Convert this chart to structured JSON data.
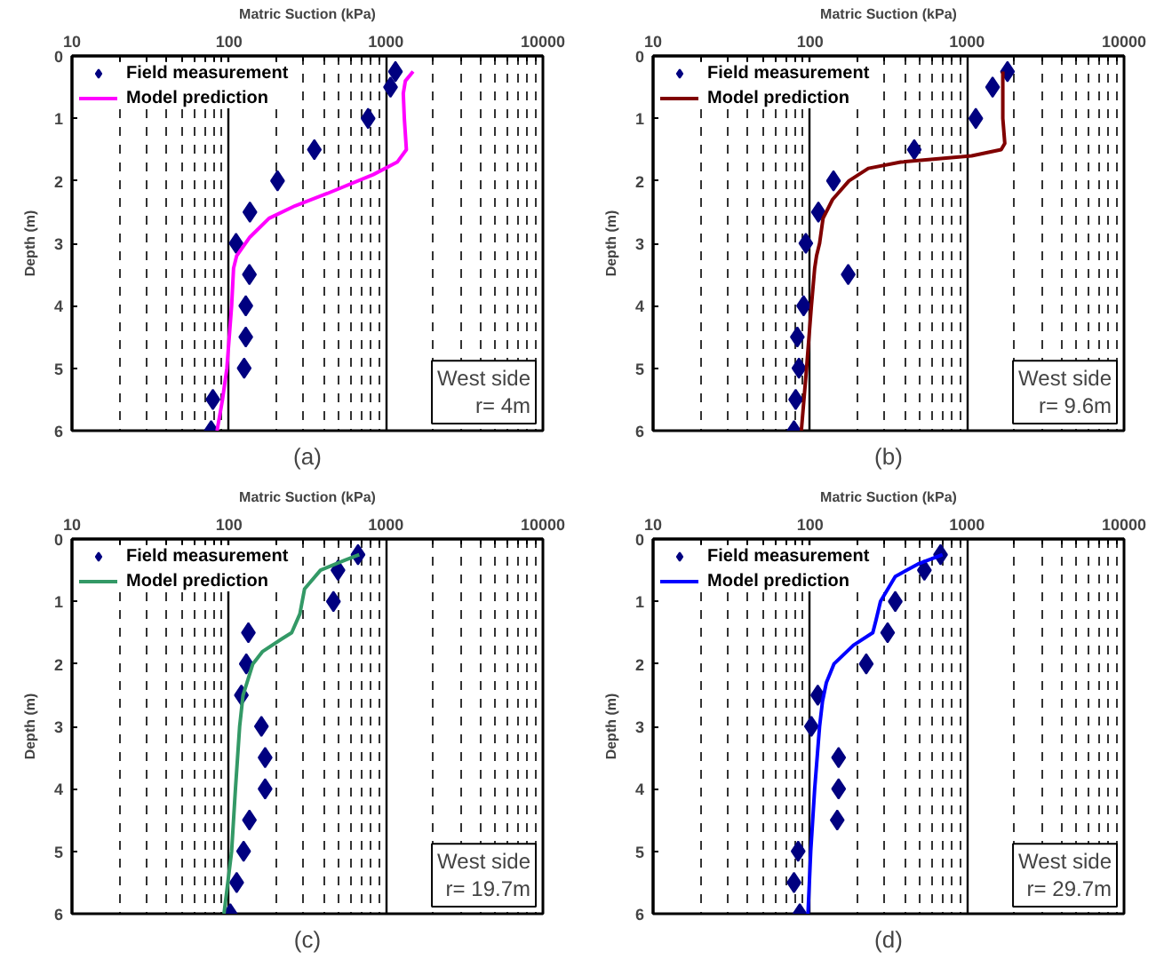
{
  "chart_data": [
    {
      "type": "scatter",
      "xlabel": "Matric Suction (kPa)",
      "ylabel": "Depth (m)",
      "log": "x",
      "xlim": [
        10,
        10000
      ],
      "ylim": [
        6,
        0
      ],
      "xticks": [
        10,
        {
          "value": 20,
          "label": null
        },
        {
          "value": 30,
          "label": null
        },
        {
          "value": 40,
          "label": null
        },
        {
          "value": 50,
          "label": null
        },
        {
          "value": 60,
          "label": null
        },
        {
          "value": 70,
          "label": null
        },
        {
          "value": 80,
          "label": null
        },
        {
          "value": 90,
          "label": null
        },
        100,
        {
          "value": 200,
          "label": null
        },
        {
          "value": 300,
          "label": null
        },
        {
          "value": 400,
          "label": null
        },
        {
          "value": 500,
          "label": null
        },
        {
          "value": 600,
          "label": null
        },
        {
          "value": 700,
          "label": null
        },
        {
          "value": 800,
          "label": null
        },
        {
          "value": 900,
          "label": null
        },
        1000,
        {
          "value": 2000,
          "label": null
        },
        {
          "value": 3000,
          "label": null
        },
        {
          "value": 4000,
          "label": null
        },
        {
          "value": 5000,
          "label": null
        },
        {
          "value": 6000,
          "label": null
        },
        {
          "value": 7000,
          "label": null
        },
        {
          "value": 8000,
          "label": null
        },
        {
          "value": 9000,
          "label": null
        },
        10000
      ],
      "yticks": [
        0,
        1,
        2,
        3,
        4,
        5,
        6
      ],
      "grid": "x",
      "legend": "top left",
      "annotations": [
        "West side",
        "r= 4m",
        "(a)"
      ],
      "series": [
        {
          "name": "Field measurement",
          "marker": "diamond",
          "color": "#000080",
          "x": [
            1150,
            1070,
            770,
            350,
            204,
            136,
            111,
            135,
            128,
            128,
            125,
            79,
            77
          ],
          "values": [
            0.25,
            0.5,
            1,
            1.5,
            2,
            2.5,
            3,
            3.5,
            4,
            4.5,
            5,
            5.5,
            6
          ]
        },
        {
          "name": "Model prediction",
          "type": "line",
          "color": "#ff00ff",
          "x": [
            1490,
            1330,
            1290,
            1310,
            1350,
            1180,
            830,
            425,
            264,
            180,
            136,
            112,
            107,
            104,
            97,
            91,
            84
          ],
          "values": [
            0.25,
            0.4,
            0.6,
            1.0,
            1.5,
            1.7,
            1.9,
            2.2,
            2.4,
            2.6,
            2.9,
            3.2,
            3.4,
            4,
            5,
            5.5,
            6
          ]
        }
      ]
    },
    {
      "type": "scatter",
      "xlabel": "Matric Suction (kPa)",
      "ylabel": "Depth (m)",
      "log": "x",
      "xlim": [
        10,
        10000
      ],
      "ylim": [
        6,
        0
      ],
      "xticks": [
        10,
        {
          "value": 20,
          "label": null
        },
        {
          "value": 30,
          "label": null
        },
        {
          "value": 40,
          "label": null
        },
        {
          "value": 50,
          "label": null
        },
        {
          "value": 60,
          "label": null
        },
        {
          "value": 70,
          "label": null
        },
        {
          "value": 80,
          "label": null
        },
        {
          "value": 90,
          "label": null
        },
        100,
        {
          "value": 200,
          "label": null
        },
        {
          "value": 300,
          "label": null
        },
        {
          "value": 400,
          "label": null
        },
        {
          "value": 500,
          "label": null
        },
        {
          "value": 600,
          "label": null
        },
        {
          "value": 700,
          "label": null
        },
        {
          "value": 800,
          "label": null
        },
        {
          "value": 900,
          "label": null
        },
        1000,
        {
          "value": 2000,
          "label": null
        },
        {
          "value": 3000,
          "label": null
        },
        {
          "value": 4000,
          "label": null
        },
        {
          "value": 5000,
          "label": null
        },
        {
          "value": 6000,
          "label": null
        },
        {
          "value": 7000,
          "label": null
        },
        {
          "value": 8000,
          "label": null
        },
        {
          "value": 9000,
          "label": null
        },
        10000
      ],
      "yticks": [
        0,
        1,
        2,
        3,
        4,
        5,
        6
      ],
      "grid": "x",
      "legend": "top left",
      "annotations": [
        "West side",
        "r= 9.6m",
        "(b)"
      ],
      "series": [
        {
          "name": "Field measurement",
          "marker": "diamond",
          "color": "#000080",
          "x": [
            1810,
            1455,
            1137,
            461,
            141,
            113,
            94,
            175,
            91,
            83,
            85,
            81,
            79
          ],
          "values": [
            0.25,
            0.5,
            1,
            1.5,
            2,
            2.5,
            3,
            3.5,
            4,
            4.5,
            5,
            5.5,
            6
          ]
        },
        {
          "name": "Model prediction",
          "type": "line",
          "color": "#800000",
          "x": [
            1690,
            1690,
            1690,
            1740,
            1650,
            1070,
            378,
            235,
            177,
            139,
            121,
            115,
            110,
            107,
            102,
            95,
            88
          ],
          "values": [
            0.25,
            0.5,
            1.0,
            1.4,
            1.5,
            1.6,
            1.7,
            1.8,
            2.0,
            2.3,
            2.6,
            3.0,
            3.2,
            3.4,
            4,
            5,
            6
          ]
        }
      ]
    },
    {
      "type": "scatter",
      "xlabel": "Matric Suction (kPa)",
      "ylabel": "Depth (m)",
      "log": "x",
      "xlim": [
        10,
        10000
      ],
      "ylim": [
        6,
        0
      ],
      "xticks": [
        10,
        {
          "value": 20,
          "label": null
        },
        {
          "value": 30,
          "label": null
        },
        {
          "value": 40,
          "label": null
        },
        {
          "value": 50,
          "label": null
        },
        {
          "value": 60,
          "label": null
        },
        {
          "value": 70,
          "label": null
        },
        {
          "value": 80,
          "label": null
        },
        {
          "value": 90,
          "label": null
        },
        100,
        {
          "value": 200,
          "label": null
        },
        {
          "value": 300,
          "label": null
        },
        {
          "value": 400,
          "label": null
        },
        {
          "value": 500,
          "label": null
        },
        {
          "value": 600,
          "label": null
        },
        {
          "value": 700,
          "label": null
        },
        {
          "value": 800,
          "label": null
        },
        {
          "value": 900,
          "label": null
        },
        1000,
        {
          "value": 2000,
          "label": null
        },
        {
          "value": 3000,
          "label": null
        },
        {
          "value": 4000,
          "label": null
        },
        {
          "value": 5000,
          "label": null
        },
        {
          "value": 6000,
          "label": null
        },
        {
          "value": 7000,
          "label": null
        },
        {
          "value": 8000,
          "label": null
        },
        {
          "value": 9000,
          "label": null
        },
        10000
      ],
      "yticks": [
        0,
        1,
        2,
        3,
        4,
        5,
        6
      ],
      "grid": "x",
      "legend": "top left",
      "annotations": [
        "West side",
        "r= 19.7m",
        "(c)"
      ],
      "series": [
        {
          "name": "Field measurement",
          "marker": "diamond",
          "color": "#000080",
          "x": [
            664,
            495,
            463,
            133,
            129,
            120,
            161,
            170,
            170,
            135,
            124,
            112,
            102
          ],
          "values": [
            0.25,
            0.5,
            1,
            1.5,
            2,
            2.5,
            3,
            3.5,
            4,
            4.5,
            5,
            5.5,
            6
          ]
        },
        {
          "name": "Model prediction",
          "type": "line",
          "color": "#339966",
          "x": [
            676,
            534,
            383,
            303,
            283,
            251,
            217,
            164,
            142,
            123,
            117,
            110,
            104,
            93
          ],
          "values": [
            0.25,
            0.35,
            0.5,
            0.8,
            1.2,
            1.5,
            1.6,
            1.8,
            2.0,
            2.5,
            3,
            4,
            5,
            6
          ]
        }
      ]
    },
    {
      "type": "scatter",
      "xlabel": "Matric Suction (kPa)",
      "ylabel": "Depth (m)",
      "log": "x",
      "xlim": [
        10,
        10000
      ],
      "ylim": [
        6,
        0
      ],
      "xticks": [
        10,
        {
          "value": 20,
          "label": null
        },
        {
          "value": 30,
          "label": null
        },
        {
          "value": 40,
          "label": null
        },
        {
          "value": 50,
          "label": null
        },
        {
          "value": 60,
          "label": null
        },
        {
          "value": 70,
          "label": null
        },
        {
          "value": 80,
          "label": null
        },
        {
          "value": 90,
          "label": null
        },
        100,
        {
          "value": 200,
          "label": null
        },
        {
          "value": 300,
          "label": null
        },
        {
          "value": 400,
          "label": null
        },
        {
          "value": 500,
          "label": null
        },
        {
          "value": 600,
          "label": null
        },
        {
          "value": 700,
          "label": null
        },
        {
          "value": 800,
          "label": null
        },
        {
          "value": 900,
          "label": null
        },
        1000,
        {
          "value": 2000,
          "label": null
        },
        {
          "value": 3000,
          "label": null
        },
        {
          "value": 4000,
          "label": null
        },
        {
          "value": 5000,
          "label": null
        },
        {
          "value": 6000,
          "label": null
        },
        {
          "value": 7000,
          "label": null
        },
        {
          "value": 8000,
          "label": null
        },
        {
          "value": 9000,
          "label": null
        },
        10000
      ],
      "yticks": [
        0,
        1,
        2,
        3,
        4,
        5,
        6
      ],
      "grid": "x",
      "legend": "top left",
      "annotations": [
        "West side",
        "r= 29.7m",
        "(d)"
      ],
      "series": [
        {
          "name": "Field measurement",
          "marker": "diamond",
          "color": "#000080",
          "x": [
            678,
            535,
            349,
            312,
            228,
            112,
            102,
            152,
            152,
            149,
            84,
            79,
            86
          ],
          "values": [
            0.25,
            0.5,
            1,
            1.5,
            2,
            2.5,
            3,
            3.5,
            4,
            4.5,
            5,
            5.5,
            6
          ]
        },
        {
          "name": "Model prediction",
          "type": "line",
          "color": "#0000ff",
          "x": [
            698,
            487,
            349,
            281,
            263,
            251,
            189,
            142,
            127,
            120,
            115,
            107,
            101,
            97
          ],
          "values": [
            0.25,
            0.4,
            0.6,
            1.0,
            1.3,
            1.5,
            1.7,
            2.0,
            2.3,
            2.6,
            3,
            4,
            5,
            6
          ]
        }
      ]
    }
  ]
}
